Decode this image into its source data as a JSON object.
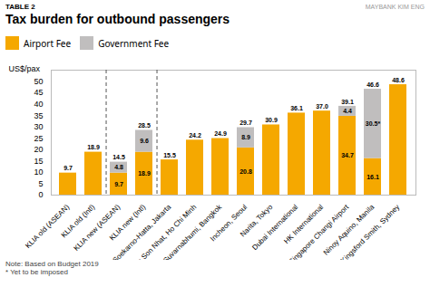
{
  "chart_data": {
    "type": "bar",
    "stacked": true,
    "title": "Tax burden for outbound passengers",
    "subtitle": "TABLE 2",
    "watermark": "MAYBANK KIM ENG",
    "note": "Note: Based on Budget 2019\n* Yet to be imposed",
    "categories": [
      "KLIA old (ASEAN)",
      "KLIA old (Intl)",
      "KLIA new (ASEAN)",
      "KLIA new (Intl)",
      "Soekarno-Hatta, Jakarta",
      "Tan Son Nhat, Ho Chi Minh",
      "Suvarnabhumi, Bangkok",
      "Incheon, Seoul",
      "Narita, Tokyo",
      "Dubai International",
      "HK International",
      "Singapore Changi Airport",
      "Ninoy Aquino, Manila",
      "Kingsford Smith, Sydney"
    ],
    "series": [
      {
        "name": "Airport Fee",
        "color": "#F5A800",
        "values": [
          9.7,
          18.9,
          9.7,
          18.9,
          15.5,
          24.2,
          24.9,
          20.8,
          30.9,
          36.1,
          37.0,
          34.7,
          16.1,
          48.6
        ],
        "value_labels": [
          null,
          null,
          "9.7",
          "18.9",
          null,
          null,
          null,
          "20.8",
          null,
          null,
          null,
          "34.7",
          "16.1",
          null
        ]
      },
      {
        "name": "Government Fee",
        "color": "#C0BEBE",
        "values": [
          0.0,
          0.0,
          4.8,
          9.6,
          0.0,
          0.0,
          0.0,
          8.9,
          0.0,
          0.0,
          0.0,
          4.4,
          30.5,
          0.0
        ],
        "value_labels": [
          null,
          null,
          "4.8",
          "9.6",
          null,
          null,
          null,
          "8.9",
          null,
          null,
          null,
          "4.4",
          "30.5*",
          null
        ]
      }
    ],
    "totals": [
      9.7,
      18.9,
      14.5,
      28.5,
      15.5,
      24.2,
      24.9,
      29.7,
      30.9,
      36.1,
      37.0,
      39.1,
      46.6,
      48.6
    ],
    "total_labels": [
      "9.7",
      "18.9",
      "14.5",
      "28.5",
      "15.5",
      "24.2",
      "24.9",
      "29.7",
      "30.9",
      "36.1",
      "37.0",
      "39.1",
      "46.6",
      "48.6"
    ],
    "dividers_after": [
      1,
      3
    ],
    "data_labels": true,
    "ylabel": "US$/pax",
    "ylim": [
      0,
      55
    ],
    "yticks": [
      0,
      5,
      10,
      15,
      20,
      25,
      30,
      35,
      40,
      45,
      50
    ],
    "grid": false,
    "legend": "top"
  }
}
